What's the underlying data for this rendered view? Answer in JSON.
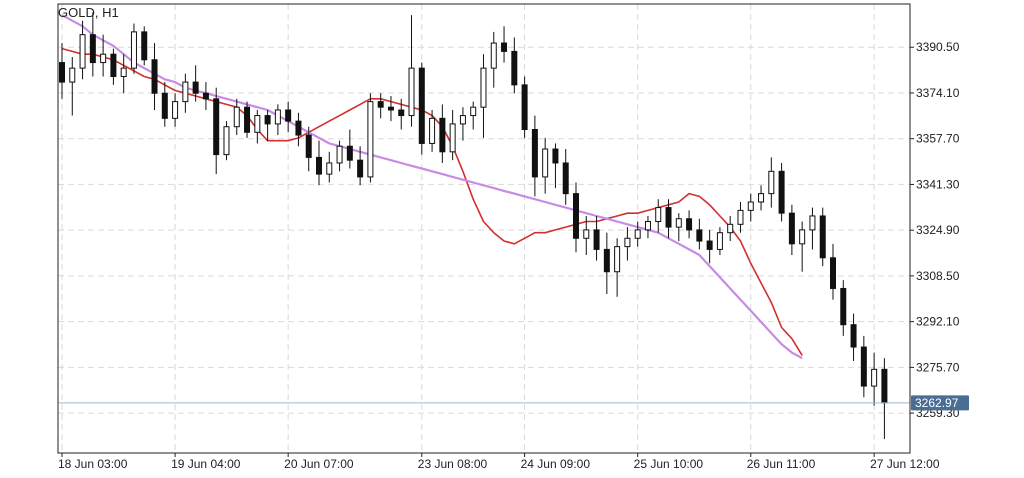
{
  "chart_data": {
    "type": "candlestick",
    "symbol_label": "GOLD, H1",
    "current_price": 3262.97,
    "current_price_label": "3262.97",
    "ylim": [
      3245,
      3406
    ],
    "y_ticks": [
      3390.5,
      3374.1,
      3357.7,
      3341.3,
      3324.9,
      3308.5,
      3292.1,
      3275.7,
      3259.3
    ],
    "y_tick_labels": [
      "3390.50",
      "3374.10",
      "3357.70",
      "3341.30",
      "3324.90",
      "3308.50",
      "3292.10",
      "3275.70",
      "3259.30"
    ],
    "x_ticks": [
      0,
      11,
      22,
      35,
      45,
      56,
      67,
      79
    ],
    "x_tick_labels": [
      "18 Jun 03:00",
      "19 Jun 04:00",
      "20 Jun 07:00",
      "23 Jun 08:00",
      "24 Jun 09:00",
      "25 Jun 10:00",
      "26 Jun 11:00",
      "27 Jun 12:00"
    ],
    "grid": true,
    "series": [
      {
        "type": "candles",
        "ohlc": [
          [
            3385,
            3392,
            3372,
            3378
          ],
          [
            3378,
            3387,
            3366,
            3383
          ],
          [
            3383,
            3400,
            3379,
            3395
          ],
          [
            3395,
            3403,
            3380,
            3385
          ],
          [
            3385,
            3395,
            3380,
            3388
          ],
          [
            3388,
            3390,
            3377,
            3380
          ],
          [
            3380,
            3388,
            3374,
            3383
          ],
          [
            3383,
            3399,
            3381,
            3396
          ],
          [
            3396,
            3398,
            3384,
            3386
          ],
          [
            3386,
            3392,
            3368,
            3374
          ],
          [
            3374,
            3378,
            3362,
            3365
          ],
          [
            3365,
            3374,
            3362,
            3371
          ],
          [
            3371,
            3381,
            3367,
            3378
          ],
          [
            3378,
            3384,
            3371,
            3374
          ],
          [
            3374,
            3378,
            3368,
            3372
          ],
          [
            3372,
            3376,
            3345,
            3352
          ],
          [
            3352,
            3364,
            3350,
            3362
          ],
          [
            3362,
            3372,
            3359,
            3369
          ],
          [
            3369,
            3371,
            3358,
            3360
          ],
          [
            3360,
            3368,
            3356,
            3366
          ],
          [
            3366,
            3368,
            3357,
            3363
          ],
          [
            3363,
            3370,
            3359,
            3368
          ],
          [
            3368,
            3371,
            3360,
            3364
          ],
          [
            3364,
            3367,
            3355,
            3359
          ],
          [
            3359,
            3362,
            3346,
            3351
          ],
          [
            3351,
            3357,
            3341,
            3345
          ],
          [
            3345,
            3353,
            3342,
            3349
          ],
          [
            3349,
            3357,
            3346,
            3355
          ],
          [
            3355,
            3361,
            3347,
            3350
          ],
          [
            3350,
            3355,
            3341,
            3344
          ],
          [
            3344,
            3374,
            3342,
            3371
          ],
          [
            3371,
            3374,
            3365,
            3369
          ],
          [
            3369,
            3373,
            3364,
            3368
          ],
          [
            3368,
            3372,
            3361,
            3366
          ],
          [
            3366,
            3402,
            3362,
            3383
          ],
          [
            3383,
            3385,
            3352,
            3356
          ],
          [
            3356,
            3368,
            3353,
            3365
          ],
          [
            3365,
            3370,
            3349,
            3353
          ],
          [
            3353,
            3368,
            3350,
            3363
          ],
          [
            3363,
            3369,
            3357,
            3366
          ],
          [
            3366,
            3371,
            3361,
            3369
          ],
          [
            3369,
            3388,
            3358,
            3383
          ],
          [
            3383,
            3396,
            3376,
            3392
          ],
          [
            3392,
            3398,
            3385,
            3389
          ],
          [
            3389,
            3394,
            3374,
            3377
          ],
          [
            3377,
            3380,
            3358,
            3361
          ],
          [
            3361,
            3366,
            3337,
            3344
          ],
          [
            3344,
            3358,
            3338,
            3354
          ],
          [
            3354,
            3356,
            3340,
            3349
          ],
          [
            3349,
            3354,
            3334,
            3338
          ],
          [
            3338,
            3342,
            3317,
            3322
          ],
          [
            3322,
            3330,
            3316,
            3325
          ],
          [
            3325,
            3330,
            3314,
            3318
          ],
          [
            3318,
            3324,
            3302,
            3310
          ],
          [
            3310,
            3322,
            3301,
            3319
          ],
          [
            3319,
            3326,
            3314,
            3322
          ],
          [
            3322,
            3328,
            3319,
            3325
          ],
          [
            3325,
            3330,
            3322,
            3328
          ],
          [
            3328,
            3336,
            3324,
            3333
          ],
          [
            3333,
            3336,
            3322,
            3326
          ],
          [
            3326,
            3331,
            3321,
            3329
          ],
          [
            3329,
            3332,
            3322,
            3325
          ],
          [
            3325,
            3329,
            3318,
            3321
          ],
          [
            3321,
            3325,
            3313,
            3318
          ],
          [
            3318,
            3326,
            3316,
            3324
          ],
          [
            3324,
            3330,
            3321,
            3327
          ],
          [
            3327,
            3335,
            3324,
            3332
          ],
          [
            3332,
            3338,
            3328,
            3335
          ],
          [
            3335,
            3341,
            3332,
            3338
          ],
          [
            3338,
            3351,
            3333,
            3346
          ],
          [
            3346,
            3349,
            3328,
            3331
          ],
          [
            3331,
            3334,
            3316,
            3320
          ],
          [
            3320,
            3328,
            3310,
            3325
          ],
          [
            3325,
            3333,
            3318,
            3330
          ],
          [
            3330,
            3333,
            3312,
            3315
          ],
          [
            3315,
            3320,
            3300,
            3304
          ],
          [
            3304,
            3307,
            3287,
            3291
          ],
          [
            3291,
            3295,
            3278,
            3283
          ],
          [
            3283,
            3287,
            3265,
            3269
          ],
          [
            3269,
            3281,
            3262,
            3275
          ],
          [
            3275,
            3279,
            3250,
            3262.97
          ]
        ]
      },
      {
        "type": "line",
        "color": "#d32f2f",
        "values": [
          3390,
          3389,
          3388,
          3388,
          3387,
          3386,
          3384,
          3382,
          3380,
          3379,
          3377,
          3375,
          3374,
          3373,
          3372,
          3371,
          3370,
          3369,
          3366,
          3361,
          3357,
          3357,
          3357,
          3358,
          3360,
          3362,
          3364,
          3366,
          3368,
          3370,
          3372,
          3372,
          3371,
          3370,
          3369,
          3368,
          3366,
          3362,
          3355,
          3346,
          3336,
          3328,
          3324,
          3321,
          3320,
          3322,
          3324,
          3324,
          3325,
          3326,
          3327,
          3328,
          3328,
          3329,
          3330,
          3331,
          3331,
          3332,
          3333,
          3334,
          3335,
          3338,
          3337,
          3334,
          3330,
          3326,
          3321,
          3313,
          3306,
          3299,
          3290,
          3286,
          3280
        ]
      },
      {
        "type": "line",
        "color": "#c78be6",
        "values": [
          3402,
          3400,
          3398,
          3395,
          3393,
          3391,
          3388,
          3385,
          3383,
          3381,
          3379,
          3378,
          3376,
          3375,
          3374,
          3373,
          3372,
          3371,
          3370,
          3369,
          3368,
          3366,
          3364,
          3362,
          3360,
          3358,
          3356,
          3355,
          3354,
          3353,
          3352,
          3351,
          3350,
          3349,
          3348,
          3347,
          3346,
          3345,
          3344,
          3343,
          3342,
          3341,
          3340,
          3339,
          3338,
          3337,
          3336,
          3335,
          3334,
          3333,
          3332,
          3331,
          3330,
          3329,
          3328,
          3327,
          3326,
          3325,
          3324,
          3322,
          3320,
          3318,
          3316,
          3312,
          3308,
          3304,
          3300,
          3296,
          3292,
          3288,
          3284,
          3281,
          3279
        ]
      }
    ],
    "colors": {
      "bull_body": "#ffffff",
      "bear_body": "#111111",
      "candle_outline": "#111111",
      "grid": "#d9d9d9",
      "price_line": "#a8b8cc",
      "price_tag_bg": "#4a6d93",
      "axis": "#222222"
    }
  }
}
